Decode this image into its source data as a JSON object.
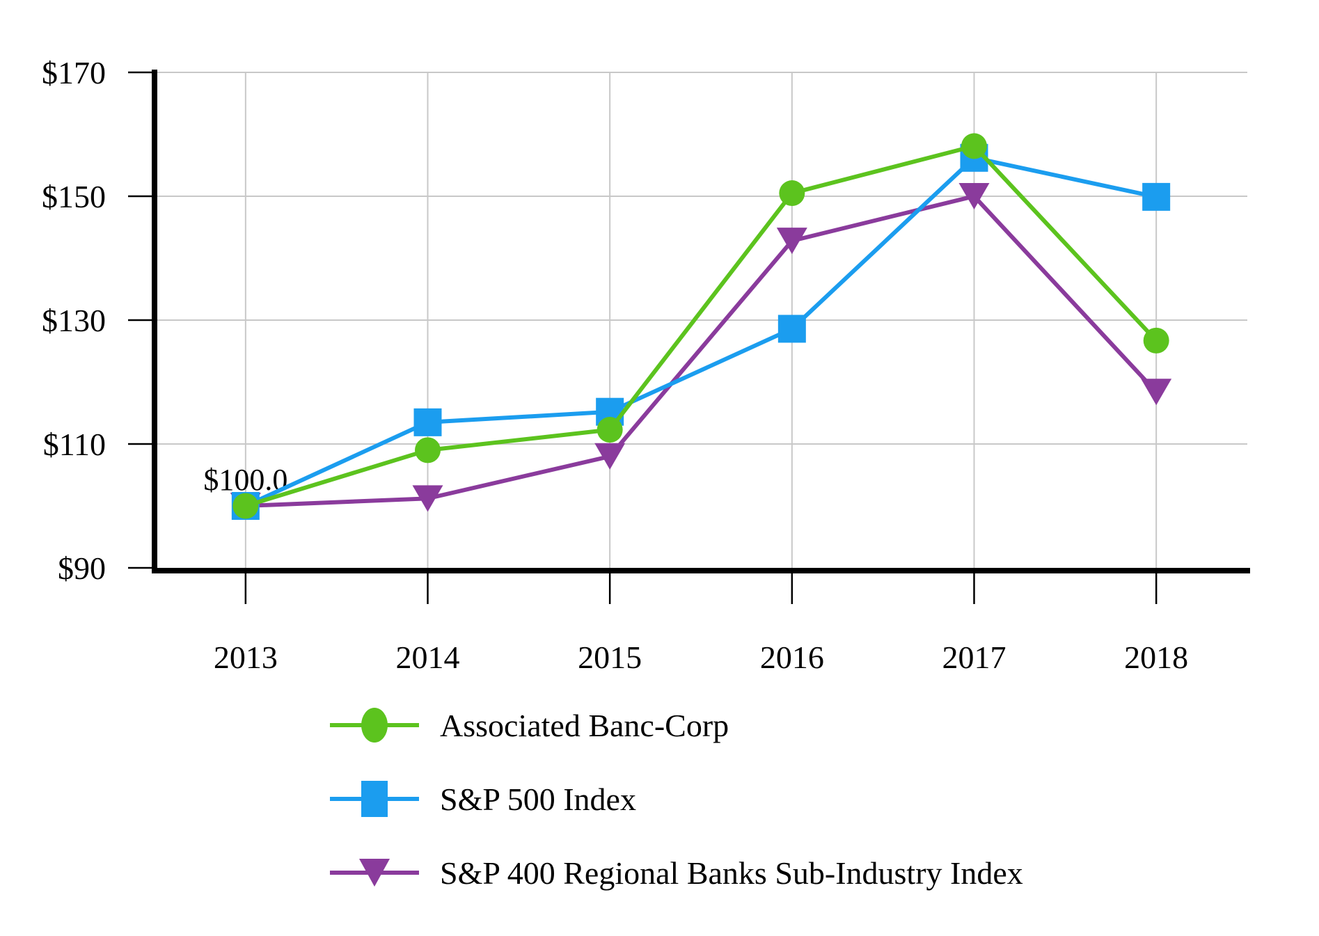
{
  "chart_data": {
    "type": "line",
    "title": "",
    "x_categories": [
      "2013",
      "2014",
      "2015",
      "2016",
      "2017",
      "2018"
    ],
    "series": [
      {
        "name": "Associated Banc-Corp",
        "marker": "circle",
        "color": "#5CC31E",
        "values": [
          100.0,
          109.0,
          112.3,
          150.5,
          158.1,
          126.7
        ]
      },
      {
        "name": "S&P 500 Index",
        "marker": "square",
        "color": "#1B9DEF",
        "values": [
          100.0,
          113.5,
          115.2,
          128.6,
          156.2,
          149.9
        ]
      },
      {
        "name": "S&P 400 Regional Banks Sub-Industry Index",
        "marker": "triangle-down",
        "color": "#8A3B9C",
        "values": [
          100.0,
          101.2,
          108.0,
          142.8,
          150.0,
          118.4
        ]
      }
    ],
    "y_axis": {
      "min": 90,
      "max": 170,
      "tick_step": 20,
      "ticks": [
        90,
        110,
        130,
        150,
        170
      ],
      "tick_labels": [
        "$90",
        "$110",
        "$130",
        "$150",
        "$170"
      ]
    },
    "annotation": {
      "text": "$100.0",
      "x_index": 0,
      "value": 100.0
    },
    "grid": true,
    "legend_position": "bottom-left",
    "colors": {
      "gridline": "#C8C8C8",
      "axis": "#000000",
      "background": "#FFFFFF",
      "text": "#000000"
    }
  },
  "legend": {
    "items": [
      {
        "label": "Associated Banc-Corp"
      },
      {
        "label": "S&P 500 Index"
      },
      {
        "label": "S&P 400 Regional Banks Sub-Industry Index"
      }
    ]
  }
}
